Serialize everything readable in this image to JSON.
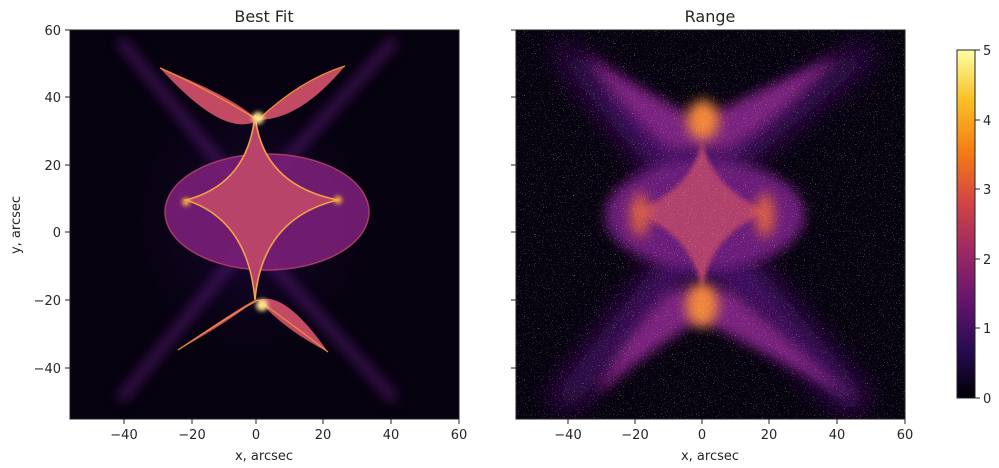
{
  "chart_data": {
    "type": "heatmap",
    "panels": [
      {
        "id": "best_fit",
        "title": "Best Fit",
        "xlabel": "x, arcsec",
        "ylabel": "y, arcsec",
        "xlim": [
          -55,
          60
        ],
        "ylim": [
          -55,
          60
        ],
        "xticks": [
          -40,
          -20,
          0,
          20,
          40,
          60
        ],
        "yticks": [
          -40,
          -20,
          0,
          20,
          40,
          60
        ],
        "ytick_labels_visible": true
      },
      {
        "id": "range",
        "title": "Range",
        "xlabel": "x, arcsec",
        "ylabel": "",
        "xlim": [
          -55,
          60
        ],
        "ylim": [
          -55,
          60
        ],
        "xticks": [
          -40,
          -20,
          0,
          20,
          40,
          60
        ],
        "yticks": [
          -40,
          -20,
          0,
          20,
          40,
          60
        ],
        "ytick_labels_visible": false
      }
    ],
    "colorbar": {
      "colormap": "inferno",
      "range": [
        0,
        5
      ],
      "ticks": [
        0,
        1,
        2,
        3,
        4,
        5
      ]
    },
    "colors": {
      "c0": "#000004",
      "c1": "#280b53",
      "c2": "#65156e",
      "c3": "#9f2a63",
      "c4": "#d44842",
      "c5": "#f57d15",
      "c6": "#fac127",
      "c7": "#fcffa4"
    }
  }
}
